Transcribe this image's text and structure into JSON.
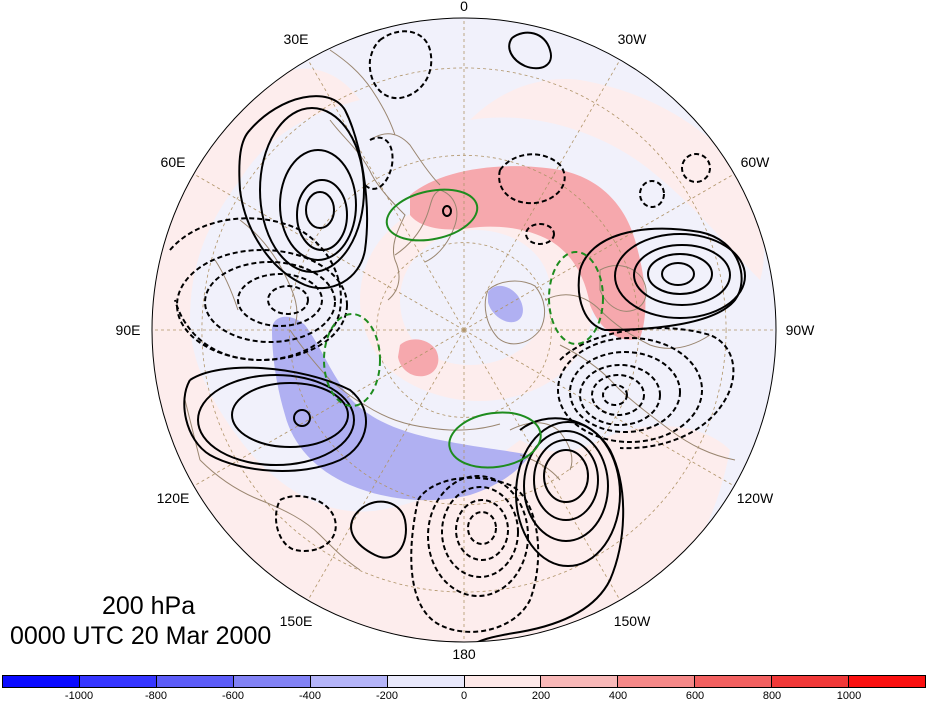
{
  "title": {
    "level": "200 hPa",
    "time": "0000 UTC 20 Mar 2000"
  },
  "longitude_labels": [
    {
      "text": "0",
      "lon": 0
    },
    {
      "text": "30W",
      "lon": -30
    },
    {
      "text": "60W",
      "lon": -60
    },
    {
      "text": "90W",
      "lon": -90
    },
    {
      "text": "120W",
      "lon": -120
    },
    {
      "text": "150W",
      "lon": -150
    },
    {
      "text": "180",
      "lon": 180
    },
    {
      "text": "150E",
      "lon": 150
    },
    {
      "text": "120E",
      "lon": 120
    },
    {
      "text": "90E",
      "lon": 90
    },
    {
      "text": "60E",
      "lon": 60
    },
    {
      "text": "30E",
      "lon": 30
    }
  ],
  "colorbar": {
    "colors": [
      "#0a0aff",
      "#3535ff",
      "#5c5cf8",
      "#8282f5",
      "#b4b4f8",
      "#e8e8fb",
      "#fde8e8",
      "#f8b8b8",
      "#f58888",
      "#f26060",
      "#f03838",
      "#fa1010"
    ],
    "labels": [
      "-1000",
      "-800",
      "-600",
      "-400",
      "-200",
      "0",
      "200",
      "400",
      "600",
      "800",
      "1000"
    ]
  },
  "map_colors": {
    "background": "#f1f1fb",
    "positive_light": "#fdeded",
    "positive_medium": "#f6a8ad",
    "negative_medium": "#b0b0f2",
    "coast": "#9a8670",
    "grid": "#b09468",
    "contour": "#000000",
    "jet_outline": "#1e8c1e"
  }
}
